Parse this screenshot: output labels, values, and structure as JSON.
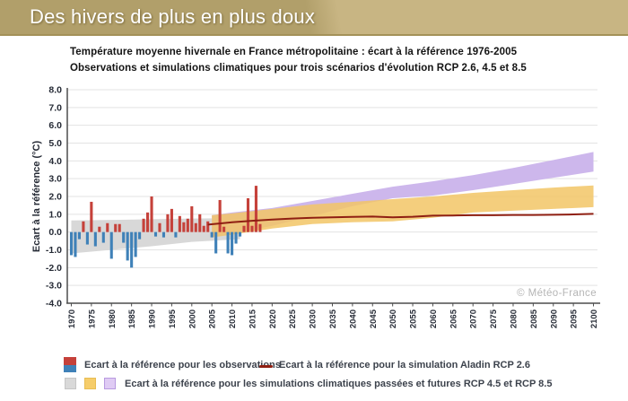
{
  "banner": {
    "title": "Des hivers de plus en plus doux"
  },
  "subtitle_line1": "Température moyenne hivernale en France métropolitaine : écart à la référence 1976-2005",
  "subtitle_line2": "Observations et simulations climatiques pour trois scénarios d'évolution RCP 2.6, 4.5 et 8.5",
  "watermark": "© Météo-France",
  "legend": {
    "observations": "Ecart à la référence pour les observations",
    "simulation_rcp26": "Ecart à la référence pour la simulation Aladin RCP 2.6",
    "simulations_bands": "Ecart à la référence pour les simulations climatiques passées et futures RCP 4.5 et RCP 8.5"
  },
  "colors": {
    "bar_positive": "#c5413a",
    "bar_negative": "#3f81b8",
    "band_past": "#d8d8d8",
    "band_rcp45": "#f2c566",
    "band_rcp85": "#cdb7ec",
    "line_rcp26": "#8f1f12",
    "grid": "#e3e3e3",
    "spine": "#4d4d4d",
    "axis_text": "#262b36",
    "banner_left": "#b19f6a",
    "banner_right": "#c8b583",
    "watermark": "#b5b5b5"
  },
  "chart_data": {
    "type": "bar+area+line",
    "title": "Température moyenne hivernale en France métropolitaine : écart à la référence 1976-2005",
    "xlabel": "",
    "ylabel": "Ecart à la référence (°C)",
    "ylim": [
      -4.0,
      8.0
    ],
    "xlim": [
      1969,
      2101
    ],
    "grid": "horizontal",
    "y_ticks": [
      "8.0",
      "7.0",
      "6.0",
      "5.0",
      "4.0",
      "3.0",
      "2.0",
      "1.0",
      "0.0",
      "-1.0",
      "-2.0",
      "-3.0",
      "-4.0"
    ],
    "x_ticks": [
      1970,
      1975,
      1980,
      1985,
      1990,
      1995,
      2000,
      2005,
      2010,
      2015,
      2020,
      2025,
      2030,
      2035,
      2040,
      2045,
      2050,
      2055,
      2060,
      2065,
      2070,
      2075,
      2080,
      2085,
      2090,
      2095,
      2100
    ],
    "observations": {
      "name": "Ecart à la référence pour les observations",
      "points": [
        [
          1970,
          -1.3
        ],
        [
          1971,
          -1.4
        ],
        [
          1972,
          -0.4
        ],
        [
          1973,
          0.6
        ],
        [
          1974,
          -0.7
        ],
        [
          1975,
          1.7
        ],
        [
          1976,
          -0.8
        ],
        [
          1977,
          0.3
        ],
        [
          1978,
          -0.6
        ],
        [
          1979,
          0.5
        ],
        [
          1980,
          -1.5
        ],
        [
          1981,
          0.45
        ],
        [
          1982,
          0.45
        ],
        [
          1983,
          -0.6
        ],
        [
          1984,
          -1.6
        ],
        [
          1985,
          -2.0
        ],
        [
          1986,
          -1.4
        ],
        [
          1987,
          -0.4
        ],
        [
          1988,
          0.75
        ],
        [
          1989,
          1.1
        ],
        [
          1990,
          2.0
        ],
        [
          1991,
          -0.25
        ],
        [
          1992,
          0.5
        ],
        [
          1993,
          -0.3
        ],
        [
          1994,
          1.0
        ],
        [
          1995,
          1.3
        ],
        [
          1996,
          -0.3
        ],
        [
          1997,
          0.9
        ],
        [
          1998,
          0.55
        ],
        [
          1999,
          0.75
        ],
        [
          2000,
          1.45
        ],
        [
          2001,
          0.5
        ],
        [
          2002,
          1.0
        ],
        [
          2003,
          0.35
        ],
        [
          2004,
          0.6
        ],
        [
          2005,
          -0.3
        ],
        [
          2006,
          -1.2
        ],
        [
          2007,
          1.8
        ],
        [
          2008,
          0.3
        ],
        [
          2009,
          -1.2
        ],
        [
          2010,
          -1.3
        ],
        [
          2011,
          -0.65
        ],
        [
          2012,
          -0.25
        ],
        [
          2013,
          0.35
        ],
        [
          2014,
          1.9
        ],
        [
          2015,
          0.35
        ],
        [
          2016,
          2.6
        ],
        [
          2017,
          0.45
        ]
      ]
    },
    "bands": {
      "past_gray": {
        "name": "Simulations climatiques passées",
        "x": [
          1970,
          1980,
          1990,
          2000,
          2008,
          2012
        ],
        "top": [
          0.65,
          0.68,
          0.72,
          0.76,
          0.78,
          0.8
        ],
        "bottom": [
          -1.2,
          -1.0,
          -0.8,
          -0.55,
          -0.45,
          -0.4
        ]
      },
      "rcp85": {
        "name": "Simulations futures RCP 8.5",
        "x": [
          2005,
          2010,
          2020,
          2030,
          2040,
          2050,
          2060,
          2070,
          2080,
          2090,
          2100
        ],
        "top": [
          0.95,
          1.1,
          1.35,
          1.75,
          2.15,
          2.55,
          2.85,
          3.2,
          3.6,
          4.05,
          4.5
        ],
        "bottom": [
          -0.3,
          -0.1,
          0.35,
          0.9,
          1.45,
          1.9,
          2.05,
          2.35,
          2.7,
          3.05,
          3.4
        ]
      },
      "rcp45": {
        "name": "Simulations futures RCP 4.5",
        "x": [
          2005,
          2010,
          2020,
          2030,
          2040,
          2050,
          2060,
          2070,
          2080,
          2090,
          2100
        ],
        "top": [
          0.95,
          1.05,
          1.3,
          1.55,
          1.7,
          1.85,
          2.0,
          2.2,
          2.35,
          2.5,
          2.62
        ],
        "bottom": [
          -0.3,
          -0.15,
          0.2,
          0.45,
          0.55,
          0.6,
          0.8,
          1.1,
          1.2,
          1.3,
          1.4
        ]
      }
    },
    "aladin_rcp26_line": {
      "name": "Ecart à la référence pour la simulation Aladin RCP 2.6",
      "x": [
        2004,
        2010,
        2015,
        2020,
        2025,
        2030,
        2035,
        2040,
        2045,
        2050,
        2055,
        2060,
        2065,
        2070,
        2075,
        2080,
        2085,
        2090,
        2095,
        2100
      ],
      "y": [
        0.42,
        0.55,
        0.63,
        0.7,
        0.76,
        0.8,
        0.83,
        0.85,
        0.87,
        0.83,
        0.86,
        0.92,
        0.93,
        0.95,
        0.95,
        0.96,
        0.96,
        0.97,
        0.99,
        1.02
      ]
    }
  }
}
